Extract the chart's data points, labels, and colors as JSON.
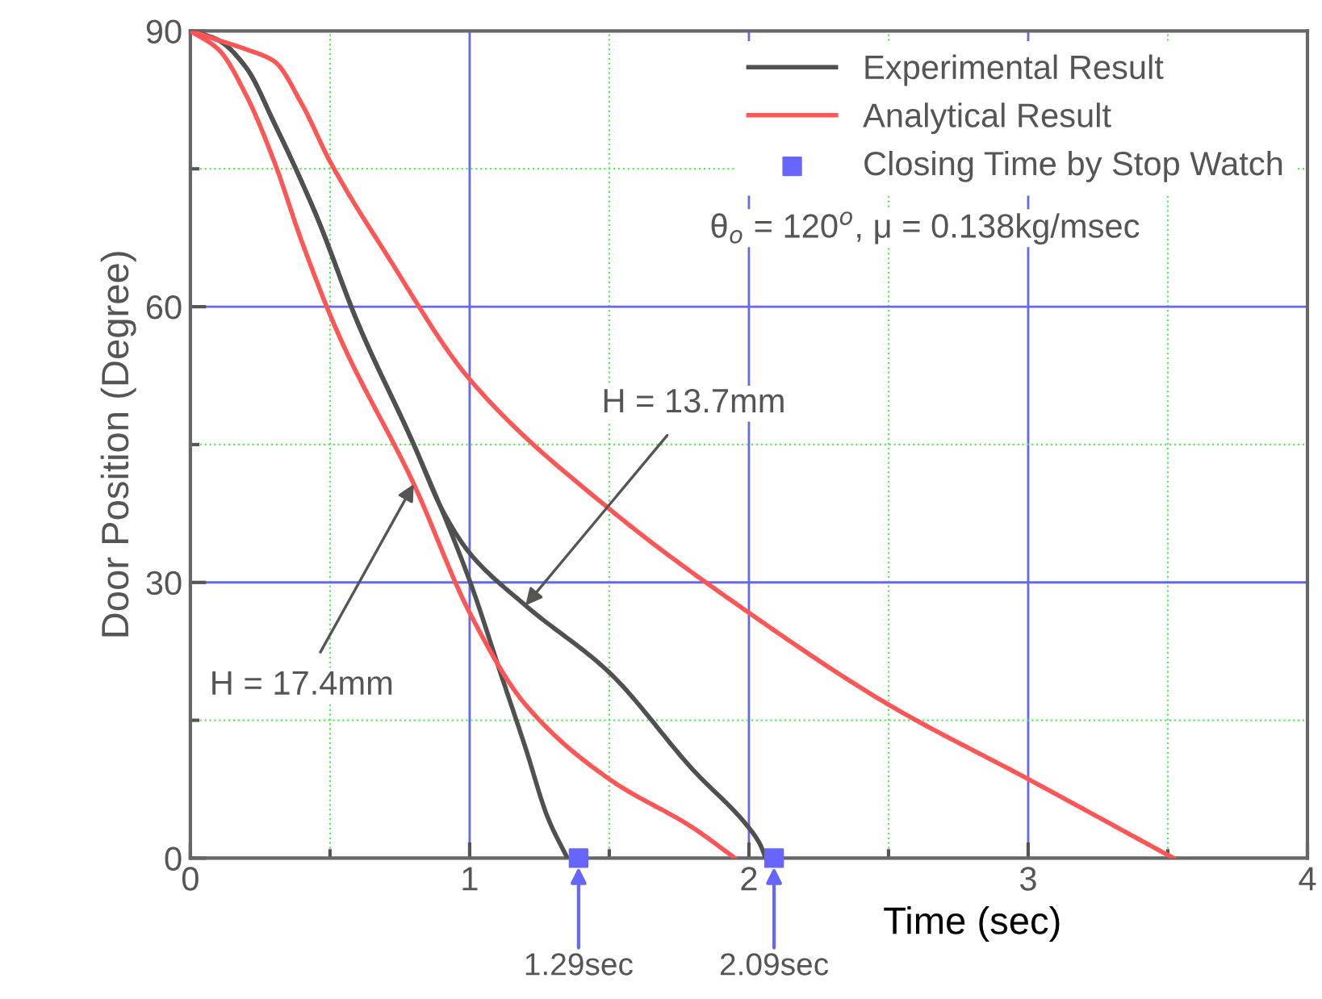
{
  "chart_data": {
    "type": "line",
    "xlabel": "Time (sec)",
    "ylabel": "Door Position (Degree)",
    "xlim": [
      0,
      4
    ],
    "xticks": [
      0,
      {
        "value": 0.5,
        "label": null
      },
      1,
      {
        "value": 1.5,
        "label": null
      },
      2,
      {
        "value": 2.5,
        "label": null
      },
      3,
      {
        "value": 3.5,
        "label": null
      },
      4
    ],
    "ylim": [
      0,
      90
    ],
    "yticks": [
      0,
      {
        "value": 15,
        "label": null
      },
      30,
      {
        "value": 45,
        "label": null
      },
      60,
      {
        "value": 75,
        "label": null
      },
      90
    ],
    "grid": true,
    "legend": "top right",
    "line_style": "solid",
    "series": [
      {
        "name": "Experimental Result",
        "color": "#505050",
        "x": [
          0,
          0.1,
          0.2,
          0.3,
          0.45,
          0.6,
          0.8,
          1.0,
          1.11,
          1.2,
          1.28,
          1.35
        ],
        "values": [
          90,
          89,
          86,
          80,
          70,
          58.2,
          45,
          30.2,
          20.2,
          12,
          4.4,
          0
        ]
      },
      {
        "color": "#505050",
        "x": [
          0,
          0.1,
          0.2,
          0.3,
          0.45,
          0.6,
          0.8,
          0.9,
          1.0,
          1.2,
          1.5,
          1.8,
          2.0,
          2.04,
          2.06
        ],
        "values": [
          90,
          89,
          86,
          80,
          70,
          58.2,
          45,
          38,
          33.2,
          27.5,
          20.2,
          9.6,
          3.3,
          1.5,
          0
        ]
      },
      {
        "name": "Analytical Result",
        "color": "#ff5555",
        "x": [
          0,
          0.1,
          0.2,
          0.3,
          0.4,
          0.53,
          0.8,
          1.0,
          1.2,
          1.5,
          1.8,
          1.95
        ],
        "values": [
          90,
          88,
          83,
          75.8,
          67,
          57,
          40.7,
          26.7,
          16.7,
          8.6,
          3.3,
          0
        ]
      },
      {
        "color": "#ff5555",
        "x": [
          0,
          0.1,
          0.2,
          0.3,
          0.4,
          0.5,
          0.7,
          1.0,
          1.5,
          2.0,
          2.5,
          3.0,
          3.52
        ],
        "values": [
          90,
          89,
          88,
          86.7,
          82,
          75.8,
          65.8,
          52.1,
          38,
          26.7,
          16.7,
          8.6,
          0
        ]
      },
      {
        "name": "Closing Time by Stop Watch",
        "type": "scatter",
        "marker": "square",
        "color": "#6666ff",
        "x": [
          1.39,
          2.09
        ],
        "values": [
          0,
          0
        ]
      }
    ],
    "annotations": [
      "θ$_{o}$ = 120$^{o}$, μ = 0.138kg/msec",
      {
        "text": "H = 13.7mm",
        "x": 1.2,
        "y": 27.5
      },
      {
        "text": "H = 17.4mm",
        "x": 0.8,
        "y": 40.7
      },
      {
        "text": "1.29sec",
        "x": 1.39,
        "y": 0
      },
      {
        "text": "2.09sec",
        "x": 2.09,
        "y": 0
      }
    ]
  }
}
